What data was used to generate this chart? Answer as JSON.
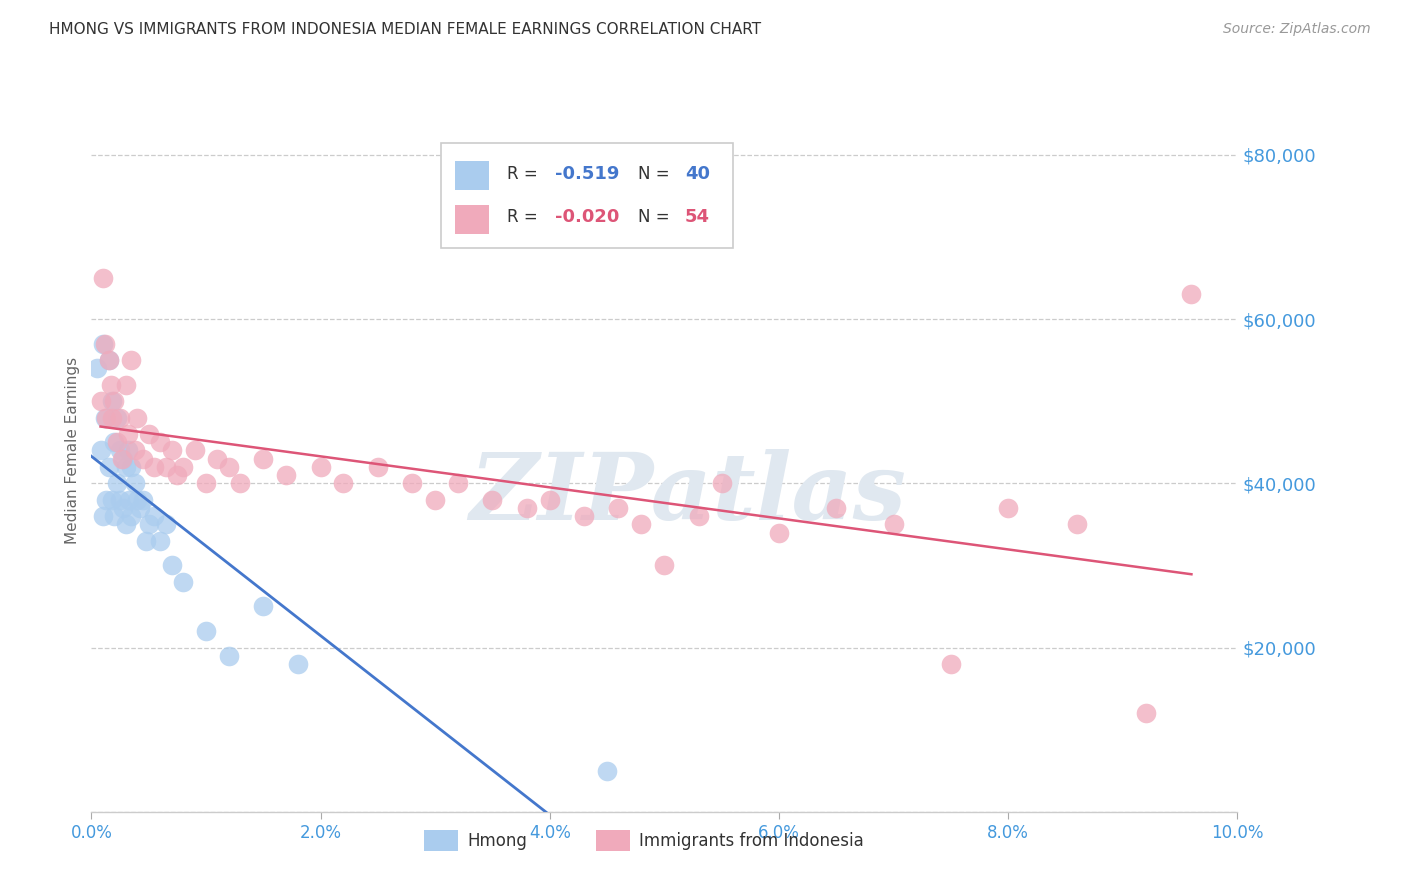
{
  "title": "HMONG VS IMMIGRANTS FROM INDONESIA MEDIAN FEMALE EARNINGS CORRELATION CHART",
  "source": "Source: ZipAtlas.com",
  "ylabel": "Median Female Earnings",
  "watermark": "ZIPatlas",
  "r_hmong": -0.519,
  "n_hmong": 40,
  "r_indonesia": -0.02,
  "n_indonesia": 54,
  "hmong_color": "#aaccee",
  "indonesia_color": "#f0aabb",
  "hmong_line_color": "#4477cc",
  "indonesia_line_color": "#dd5577",
  "axis_label_color": "#4499dd",
  "background_color": "#ffffff",
  "xlim": [
    0.0,
    0.1
  ],
  "ylim": [
    0,
    88000
  ],
  "yticks": [
    0,
    20000,
    40000,
    60000,
    80000
  ],
  "xticks": [
    0.0,
    0.02,
    0.04,
    0.06,
    0.08,
    0.1
  ],
  "xtick_labels": [
    "0.0%",
    "2.0%",
    "4.0%",
    "6.0%",
    "8.0%",
    "10.0%"
  ],
  "ytick_labels": [
    "",
    "$20,000",
    "$40,000",
    "$60,000",
    "$80,000"
  ],
  "hmong_x": [
    0.0005,
    0.0008,
    0.001,
    0.001,
    0.0012,
    0.0013,
    0.0015,
    0.0015,
    0.0018,
    0.0018,
    0.002,
    0.002,
    0.0022,
    0.0022,
    0.0025,
    0.0025,
    0.0028,
    0.0028,
    0.003,
    0.003,
    0.0032,
    0.0033,
    0.0035,
    0.0035,
    0.0038,
    0.004,
    0.0042,
    0.0045,
    0.0048,
    0.005,
    0.0055,
    0.006,
    0.0065,
    0.007,
    0.008,
    0.01,
    0.012,
    0.015,
    0.018,
    0.045
  ],
  "hmong_y": [
    54000,
    44000,
    57000,
    36000,
    48000,
    38000,
    55000,
    42000,
    50000,
    38000,
    45000,
    36000,
    48000,
    40000,
    44000,
    38000,
    43000,
    37000,
    42000,
    35000,
    44000,
    38000,
    42000,
    36000,
    40000,
    38000,
    37000,
    38000,
    33000,
    35000,
    36000,
    33000,
    35000,
    30000,
    28000,
    22000,
    19000,
    25000,
    18000,
    5000
  ],
  "indonesia_x": [
    0.0008,
    0.001,
    0.0012,
    0.0013,
    0.0015,
    0.0017,
    0.0018,
    0.002,
    0.0022,
    0.0025,
    0.0027,
    0.003,
    0.0032,
    0.0035,
    0.0038,
    0.004,
    0.0045,
    0.005,
    0.0055,
    0.006,
    0.0065,
    0.007,
    0.0075,
    0.008,
    0.009,
    0.01,
    0.011,
    0.012,
    0.013,
    0.015,
    0.017,
    0.02,
    0.022,
    0.025,
    0.028,
    0.03,
    0.032,
    0.035,
    0.038,
    0.04,
    0.043,
    0.046,
    0.048,
    0.05,
    0.053,
    0.055,
    0.06,
    0.065,
    0.07,
    0.075,
    0.08,
    0.086,
    0.092,
    0.096
  ],
  "indonesia_y": [
    50000,
    65000,
    57000,
    48000,
    55000,
    52000,
    48000,
    50000,
    45000,
    48000,
    43000,
    52000,
    46000,
    55000,
    44000,
    48000,
    43000,
    46000,
    42000,
    45000,
    42000,
    44000,
    41000,
    42000,
    44000,
    40000,
    43000,
    42000,
    40000,
    43000,
    41000,
    42000,
    40000,
    42000,
    40000,
    38000,
    40000,
    38000,
    37000,
    38000,
    36000,
    37000,
    35000,
    30000,
    36000,
    40000,
    34000,
    37000,
    35000,
    18000,
    37000,
    35000,
    12000,
    63000
  ]
}
